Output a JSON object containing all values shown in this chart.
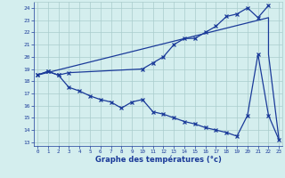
{
  "xlabel": "Graphe des températures (°c)",
  "background_color": "#d4eeee",
  "grid_color": "#aacccc",
  "line_color": "#1a3a99",
  "xlim": [
    -0.3,
    23.3
  ],
  "ylim": [
    12.7,
    24.5
  ],
  "yticks": [
    13,
    14,
    15,
    16,
    17,
    18,
    19,
    20,
    21,
    22,
    23,
    24
  ],
  "xticks": [
    0,
    1,
    2,
    3,
    4,
    5,
    6,
    7,
    8,
    9,
    10,
    11,
    12,
    13,
    14,
    15,
    16,
    17,
    18,
    19,
    20,
    21,
    22,
    23
  ],
  "series": [
    {
      "x": [
        0,
        1,
        2,
        3,
        10,
        11,
        12,
        13,
        14,
        15,
        16,
        17,
        18,
        19,
        20,
        21,
        22
      ],
      "y": [
        18.5,
        18.8,
        18.5,
        18.7,
        19.0,
        19.5,
        20.0,
        21.0,
        21.5,
        21.5,
        22.0,
        22.5,
        23.3,
        23.5,
        24.0,
        23.2,
        24.2
      ]
    },
    {
      "x": [
        0,
        1,
        2,
        3,
        4,
        5,
        6,
        7,
        8,
        9,
        10,
        11,
        12,
        13,
        14,
        15,
        16,
        17,
        18,
        19,
        20,
        21,
        22,
        23
      ],
      "y": [
        18.5,
        18.8,
        18.5,
        17.5,
        17.2,
        16.8,
        16.5,
        16.3,
        15.8,
        16.3,
        16.5,
        15.5,
        15.3,
        15.0,
        14.7,
        14.5,
        14.2,
        14.0,
        13.8,
        13.5,
        15.2,
        20.2,
        15.2,
        13.2
      ]
    },
    {
      "x": [
        0,
        22,
        22,
        23
      ],
      "y": [
        18.5,
        23.2,
        20.2,
        13.2
      ]
    }
  ]
}
